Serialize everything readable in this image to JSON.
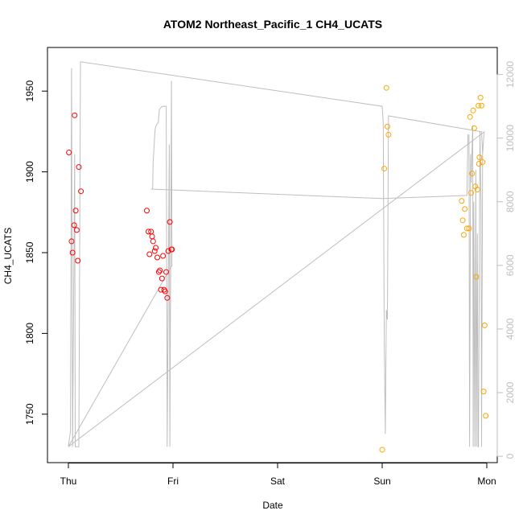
{
  "chart_data": {
    "type": "scatter",
    "title": "ATOM2 Northeast_Pacific_1 CH4_UCATS",
    "xlabel": "Date",
    "ylabel": "CH4_UCATS",
    "x_ticks": [
      "Thu",
      "Fri",
      "Sat",
      "Sun",
      "Mon"
    ],
    "x_tick_values": [
      0,
      1,
      2,
      3,
      4
    ],
    "xlim": [
      -0.2,
      4.1
    ],
    "ylim": [
      1720,
      1977
    ],
    "y_ticks": [
      1750,
      1800,
      1850,
      1900,
      1950
    ],
    "y2lim": [
      -200,
      12850
    ],
    "y2_ticks": [
      0,
      2000,
      4000,
      6000,
      8000,
      10000,
      12000
    ],
    "grid": false,
    "colors": {
      "red_series": "#ff0000",
      "orange_series": "#ffa500",
      "altitude_line": "#bebebe",
      "axis": "#000000"
    },
    "series": [
      {
        "color": "red",
        "x": [
          0.005,
          0.03,
          0.04,
          0.055,
          0.06,
          0.07,
          0.08,
          0.09,
          0.1,
          0.12,
          0.75,
          0.765,
          0.775,
          0.79,
          0.8,
          0.81,
          0.825,
          0.835,
          0.85,
          0.865,
          0.875,
          0.885,
          0.895,
          0.905,
          0.915,
          0.925,
          0.935,
          0.945,
          0.955,
          0.97,
          0.985,
          0.99
        ],
        "y": [
          1912,
          1857,
          1850,
          1867,
          1935,
          1876,
          1864,
          1845,
          1903,
          1888,
          1876,
          1863,
          1849,
          1863,
          1860,
          1857,
          1851,
          1853,
          1847,
          1838,
          1839,
          1827,
          1834,
          1848,
          1827,
          1826,
          1838,
          1822,
          1851,
          1869,
          1852,
          1852
        ]
      },
      {
        "color": "orange",
        "x": [
          3.0,
          3.02,
          3.04,
          3.05,
          3.06,
          3.76,
          3.77,
          3.78,
          3.79,
          3.81,
          3.83,
          3.84,
          3.85,
          3.86,
          3.87,
          3.88,
          3.89,
          3.9,
          3.91,
          3.92,
          3.925,
          3.93,
          3.94,
          3.95,
          3.96,
          3.97,
          3.98,
          3.99
        ],
        "y": [
          1728,
          1902,
          1952,
          1928,
          1923,
          1882,
          1870,
          1861,
          1877,
          1865,
          1865,
          1934,
          1887,
          1899,
          1938,
          1927,
          1891,
          1835,
          1889,
          1941,
          1905,
          1909,
          1946,
          1941,
          1906,
          1764,
          1805,
          1749
        ]
      }
    ],
    "altitude_line": {
      "y_axis": "right",
      "points": [
        [
          0.0,
          300
        ],
        [
          0.02,
          800
        ],
        [
          0.03,
          12200
        ],
        [
          0.04,
          300
        ],
        [
          0.06,
          9500
        ],
        [
          0.065,
          300
        ],
        [
          0.08,
          300
        ],
        [
          0.1,
          300
        ],
        [
          0.115,
          12400
        ],
        [
          3.0,
          11000
        ],
        [
          3.01,
          10500
        ],
        [
          3.02,
          3500
        ],
        [
          3.03,
          700
        ],
        [
          3.035,
          3000
        ],
        [
          3.04,
          4600
        ],
        [
          3.05,
          4300
        ],
        [
          3.06,
          10700
        ],
        [
          3.95,
          10200
        ],
        [
          3.96,
          9500
        ],
        [
          3.97,
          10000
        ],
        [
          3.975,
          10200
        ],
        [
          0.0,
          300
        ],
        [
          0.99,
          6000
        ],
        [
          0.985,
          11800
        ],
        [
          0.97,
          300
        ],
        [
          0.965,
          9800
        ],
        [
          0.945,
          300
        ],
        [
          0.935,
          11000
        ],
        [
          0.93,
          11000
        ],
        [
          0.91,
          11000
        ],
        [
          0.895,
          11000
        ],
        [
          0.87,
          10900
        ],
        [
          0.86,
          10500
        ],
        [
          0.84,
          10400
        ],
        [
          0.83,
          10300
        ],
        [
          0.825,
          10100
        ],
        [
          0.82,
          9800
        ],
        [
          0.81,
          9200
        ],
        [
          0.805,
          8400
        ],
        [
          0.79,
          8400
        ],
        [
          3.0,
          8100
        ],
        [
          3.81,
          8200
        ],
        [
          3.82,
          10100
        ],
        [
          3.83,
          10100
        ],
        [
          3.835,
          300
        ],
        [
          3.845,
          9500
        ],
        [
          3.85,
          8600
        ],
        [
          3.865,
          10400
        ],
        [
          3.87,
          300
        ],
        [
          3.875,
          8000
        ],
        [
          3.885,
          300
        ],
        [
          3.895,
          9000
        ],
        [
          3.9,
          300
        ],
        [
          3.91,
          7000
        ],
        [
          3.915,
          300
        ],
        [
          3.92,
          300
        ],
        [
          3.935,
          10200
        ],
        [
          3.945,
          8000
        ],
        [
          3.95,
          300
        ],
        [
          3.96,
          9500
        ]
      ]
    }
  }
}
